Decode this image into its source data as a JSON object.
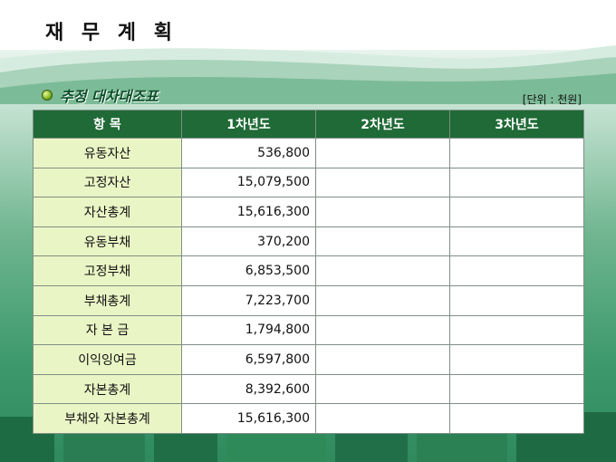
{
  "slide": {
    "title": "재 무 계 획",
    "subtitle": "추정 대차대조표",
    "unit": "[단위 : 천원]"
  },
  "table": {
    "headers": [
      "항   목",
      "1차년도",
      "2차년도",
      "3차년도"
    ],
    "rows": [
      {
        "item": "유동자산",
        "y1": "536,800",
        "y2": "",
        "y3": ""
      },
      {
        "item": "고정자산",
        "y1": "15,079,500",
        "y2": "",
        "y3": ""
      },
      {
        "item": "자산총계",
        "y1": "15,616,300",
        "y2": "",
        "y3": ""
      },
      {
        "item": "유동부채",
        "y1": "370,200",
        "y2": "",
        "y3": ""
      },
      {
        "item": "고정부채",
        "y1": "6,853,500",
        "y2": "",
        "y3": ""
      },
      {
        "item": "부채총계",
        "y1": "7,223,700",
        "y2": "",
        "y3": ""
      },
      {
        "item": "자 본 금",
        "y1": "1,794,800",
        "y2": "",
        "y3": ""
      },
      {
        "item": "이익잉여금",
        "y1": "6,597,800",
        "y2": "",
        "y3": ""
      },
      {
        "item": "자본총계",
        "y1": "8,392,600",
        "y2": "",
        "y3": ""
      },
      {
        "item": "부채와 자본총계",
        "y1": "15,616,300",
        "y2": "",
        "y3": ""
      }
    ]
  },
  "colors": {
    "header_bg": "#1f6a36",
    "label_bg": "#eaf5c5",
    "background_green": "#3e9a6c"
  },
  "icons": {
    "bullet": "green-ball-bullet-icon"
  }
}
